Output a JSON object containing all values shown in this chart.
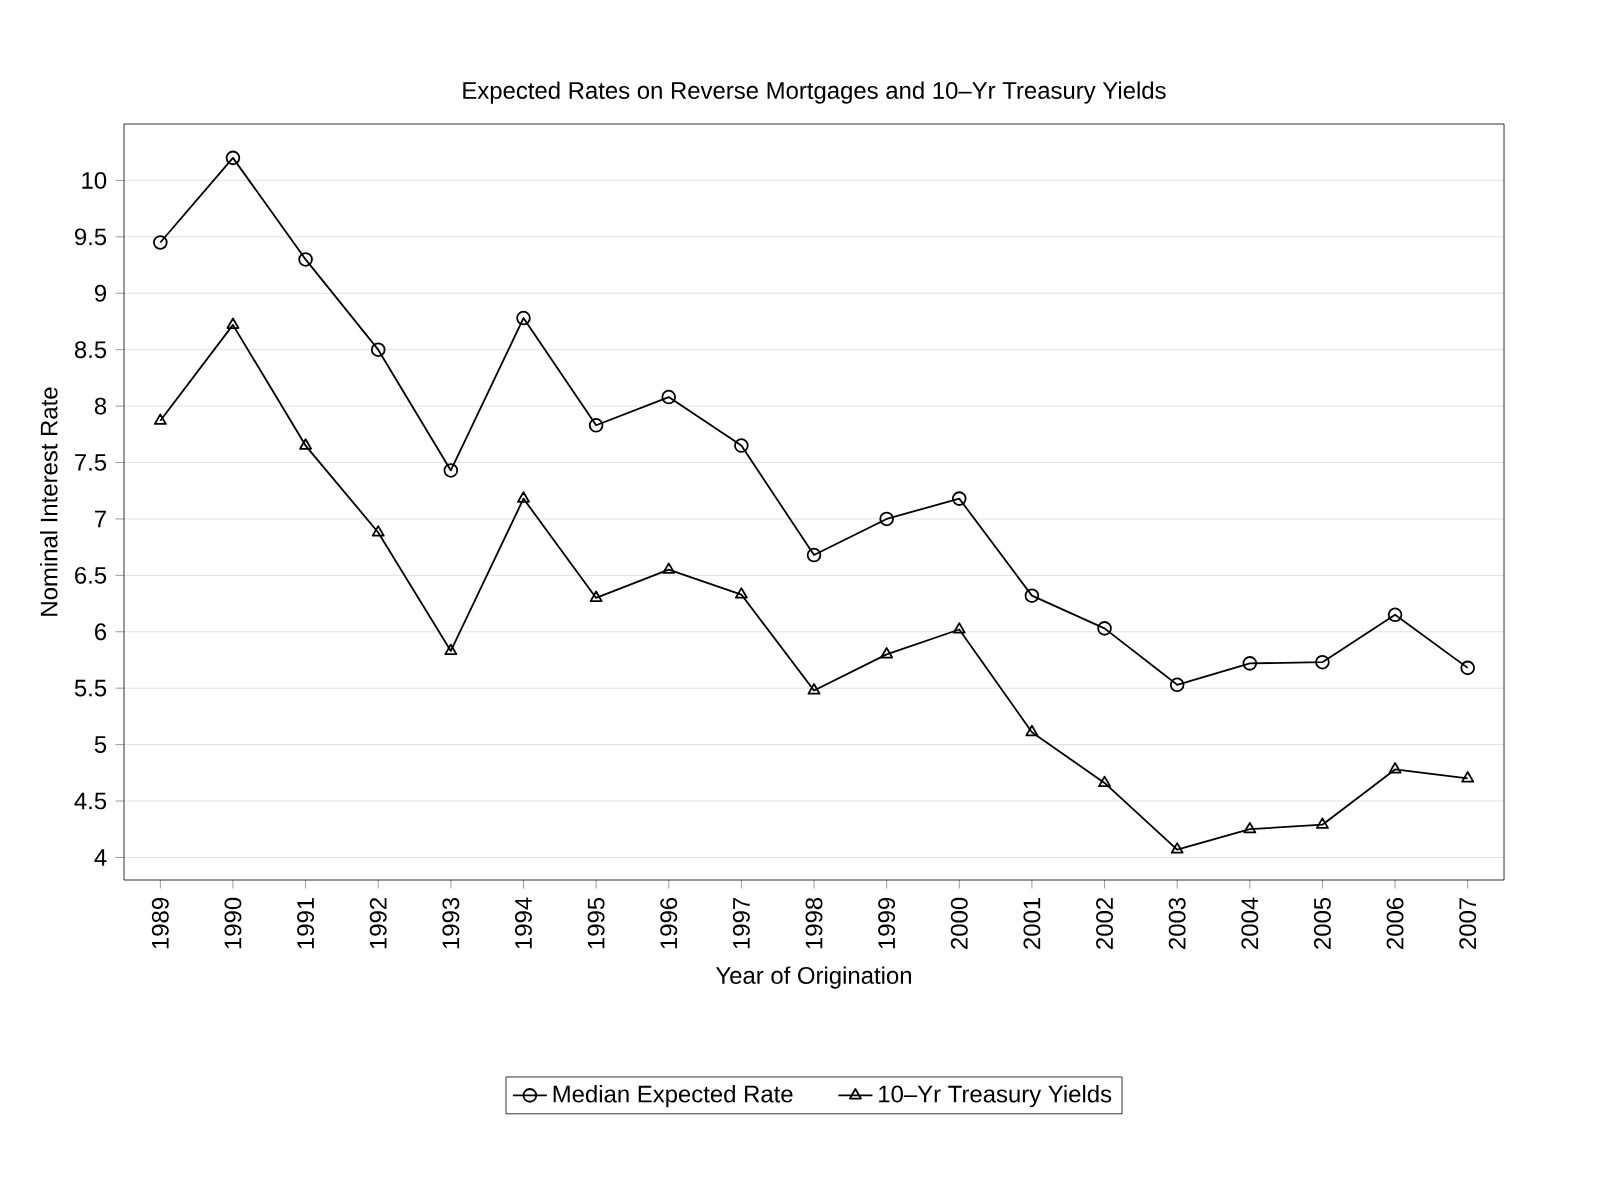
{
  "chart_data": {
    "type": "line",
    "title": "Expected Rates on Reverse Mortgages and 10–Yr Treasury Yields",
    "xlabel": "Year of Origination",
    "ylabel": "Nominal Interest Rate",
    "categories": [
      "1989",
      "1990",
      "1991",
      "1992",
      "1993",
      "1994",
      "1995",
      "1996",
      "1997",
      "1998",
      "1999",
      "2000",
      "2001",
      "2002",
      "2003",
      "2004",
      "2005",
      "2006",
      "2007"
    ],
    "series": [
      {
        "name": "Median Expected Rate",
        "color": "#000000",
        "marker": "circle",
        "values": [
          9.45,
          10.2,
          9.3,
          8.5,
          7.43,
          8.78,
          7.83,
          8.08,
          7.65,
          6.68,
          7.0,
          7.18,
          6.32,
          6.03,
          5.53,
          5.72,
          5.73,
          6.15,
          5.68
        ]
      },
      {
        "name": "10–Yr Treasury Yields",
        "color": "#000000",
        "marker": "triangle",
        "values": [
          7.87,
          8.72,
          7.65,
          6.88,
          5.83,
          7.18,
          6.3,
          6.55,
          6.33,
          5.48,
          5.8,
          6.02,
          5.11,
          4.66,
          4.07,
          4.25,
          4.29,
          4.78,
          4.7
        ]
      }
    ],
    "ylim": [
      3.8,
      10.5
    ],
    "yticks": [
      4,
      4.5,
      5,
      5.5,
      6,
      6.5,
      7,
      7.5,
      8,
      8.5,
      9,
      9.5,
      10
    ],
    "grid": "y",
    "legend": "bottom",
    "line_style": "solid"
  }
}
